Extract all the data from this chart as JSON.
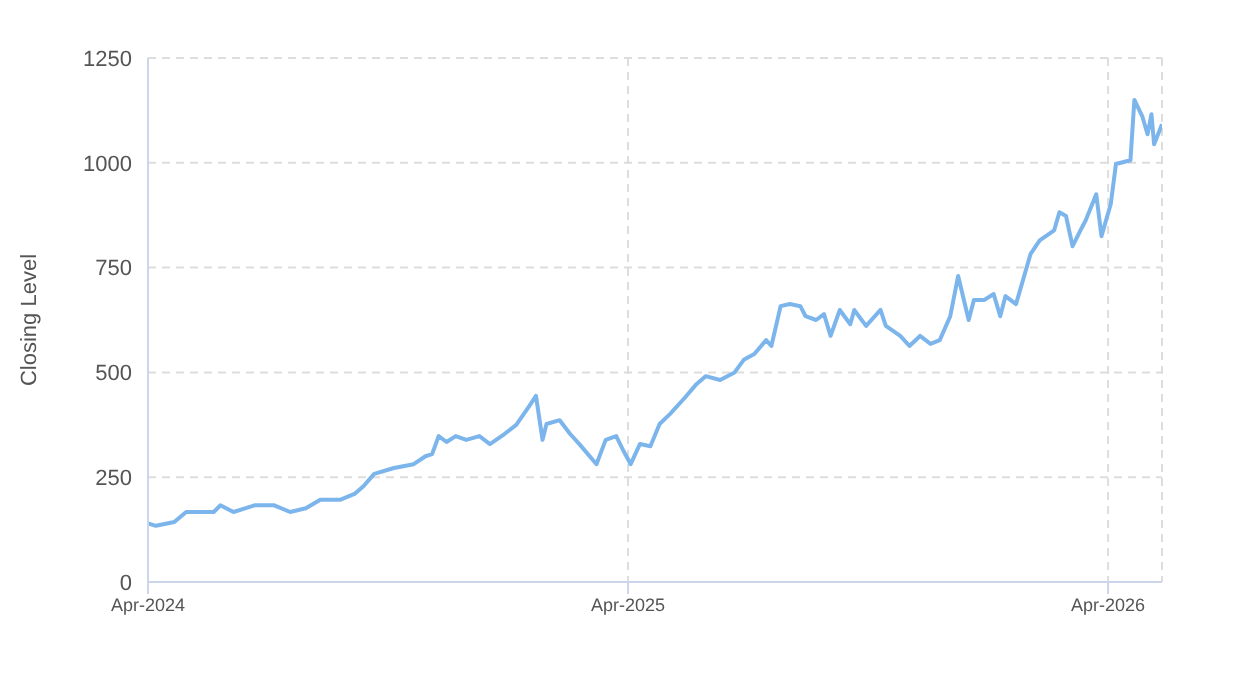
{
  "chart_data": {
    "type": "line",
    "ylabel": "Closing Level",
    "xlim": [
      "2024-04-01",
      "2026-05-12"
    ],
    "ylim": [
      0,
      1250
    ],
    "yticks": [
      0,
      250,
      500,
      750,
      1000,
      1250
    ],
    "xticks": [
      {
        "value": "2024-04-01",
        "label": "Apr-2024"
      },
      {
        "value": "2025-04-01",
        "label": "Apr-2025"
      },
      {
        "value": "2026-04-01",
        "label": "Apr-2026"
      }
    ],
    "grid": true,
    "marker": "none",
    "line_style": "solid",
    "x": [
      "2024-04-01",
      "2024-04-07",
      "2024-04-21",
      "2024-04-30",
      "2024-05-11",
      "2024-05-21",
      "2024-05-26",
      "2024-06-05",
      "2024-06-21",
      "2024-07-06",
      "2024-07-18",
      "2024-07-30",
      "2024-08-10",
      "2024-08-25",
      "2024-09-05",
      "2024-09-12",
      "2024-09-20",
      "2024-10-05",
      "2024-10-20",
      "2024-10-29",
      "2024-11-03",
      "2024-11-08",
      "2024-11-14",
      "2024-11-21",
      "2024-11-29",
      "2024-12-09",
      "2024-12-17",
      "2024-12-28",
      "2025-01-06",
      "2025-01-16",
      "2025-01-21",
      "2025-01-26",
      "2025-01-29",
      "2025-02-08",
      "2025-02-16",
      "2025-02-23",
      "2025-03-08",
      "2025-03-15",
      "2025-03-23",
      "2025-03-29",
      "2025-04-03",
      "2025-04-10",
      "2025-04-18",
      "2025-04-25",
      "2025-05-03",
      "2025-05-14",
      "2025-05-23",
      "2025-05-30",
      "2025-06-10",
      "2025-06-21",
      "2025-06-28",
      "2025-07-06",
      "2025-07-15",
      "2025-07-19",
      "2025-07-26",
      "2025-08-02",
      "2025-08-10",
      "2025-08-14",
      "2025-08-22",
      "2025-08-28",
      "2025-09-02",
      "2025-09-09",
      "2025-09-17",
      "2025-09-20",
      "2025-09-29",
      "2025-10-10",
      "2025-10-14",
      "2025-10-25",
      "2025-11-01",
      "2025-11-09",
      "2025-11-17",
      "2025-11-24",
      "2025-12-02",
      "2025-12-08",
      "2025-12-16",
      "2025-12-20",
      "2025-12-28",
      "2026-01-04",
      "2026-01-09",
      "2026-01-13",
      "2026-01-21",
      "2026-02-01",
      "2026-02-08",
      "2026-02-19",
      "2026-02-23",
      "2026-02-28",
      "2026-03-05",
      "2026-03-11",
      "2026-03-15",
      "2026-03-23",
      "2026-03-27",
      "2026-04-03",
      "2026-04-07",
      "2026-04-18",
      "2026-04-21",
      "2026-04-27",
      "2026-05-01",
      "2026-05-04",
      "2026-05-06",
      "2026-05-12"
    ],
    "series": [
      {
        "color": "#7cb5ec",
        "values": [
          140,
          134,
          143,
          167,
          167,
          167,
          183,
          167,
          183,
          183,
          167,
          176,
          196,
          196,
          210,
          229,
          258,
          272,
          281,
          300,
          305,
          348,
          334,
          348,
          339,
          348,
          329,
          353,
          375,
          420,
          444,
          339,
          377,
          386,
          353,
          329,
          281,
          339,
          348,
          310,
          281,
          329,
          324,
          377,
          401,
          439,
          472,
          491,
          482,
          500,
          530,
          544,
          577,
          563,
          658,
          663,
          658,
          634,
          625,
          639,
          587,
          649,
          615,
          649,
          611,
          649,
          611,
          587,
          563,
          587,
          568,
          577,
          634,
          730,
          625,
          673,
          673,
          687,
          634,
          682,
          663,
          782,
          815,
          839,
          882,
          873,
          801,
          839,
          863,
          925,
          825,
          901,
          997,
          1006,
          1150,
          1111,
          1068,
          1116,
          1044,
          1092
        ]
      }
    ]
  }
}
